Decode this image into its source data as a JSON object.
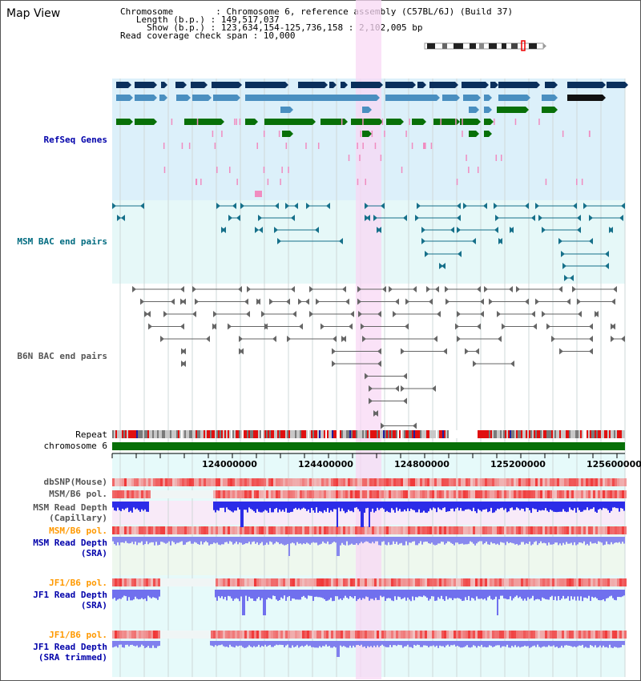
{
  "view": {
    "title": "Map View"
  },
  "info": {
    "chromosome": "Chromosome        : Chromosome 6, reference assembly (C57BL/6J) (Build 37)",
    "length": "Length (b.p.) : 149,517,037",
    "show": "Show (b.p.) : 123,634,154-125,736,158 : 2,102,005 bp",
    "span": "Read coverage check span : 10,000"
  },
  "tracks": {
    "refseq": "RefSeq Genes",
    "msm_bac": "MSM BAC end pairs",
    "b6n_bac": "B6N BAC end pairs",
    "repeat": "Repeat",
    "chromosome": "chromosome 6",
    "dbsnp": "dbSNP(Mouse)",
    "msm_pol": "MSM/B6 pol.",
    "msm_depth_cap1": "MSM Read Depth",
    "msm_depth_cap2": "(Capillary)",
    "msm_pol2": "MSM/B6 pol.",
    "msm_depth_sra1": "MSM Read Depth",
    "msm_depth_sra2": "(SRA)",
    "jf1_pol": "JF1/B6 pol.",
    "jf1_depth1": "JF1 Read Depth",
    "jf1_depth2": "(SRA)",
    "jf1_pol2": "JF1/B6 pol.",
    "jf1_trim1": "JF1 Read Depth",
    "jf1_trim2": "(SRA trimmed)"
  },
  "axis": {
    "ticks": [
      "124000000",
      "124400000",
      "124800000",
      "125200000",
      "125600000"
    ]
  },
  "colors": {
    "highlight": "#f8d8f4",
    "refseq_bg": "#dcf0fa",
    "gene_dark": "#0a2f5c",
    "gene_mid": "#4a8fc0",
    "gene_green": "#087008",
    "depth": "#2c2ce8"
  }
}
